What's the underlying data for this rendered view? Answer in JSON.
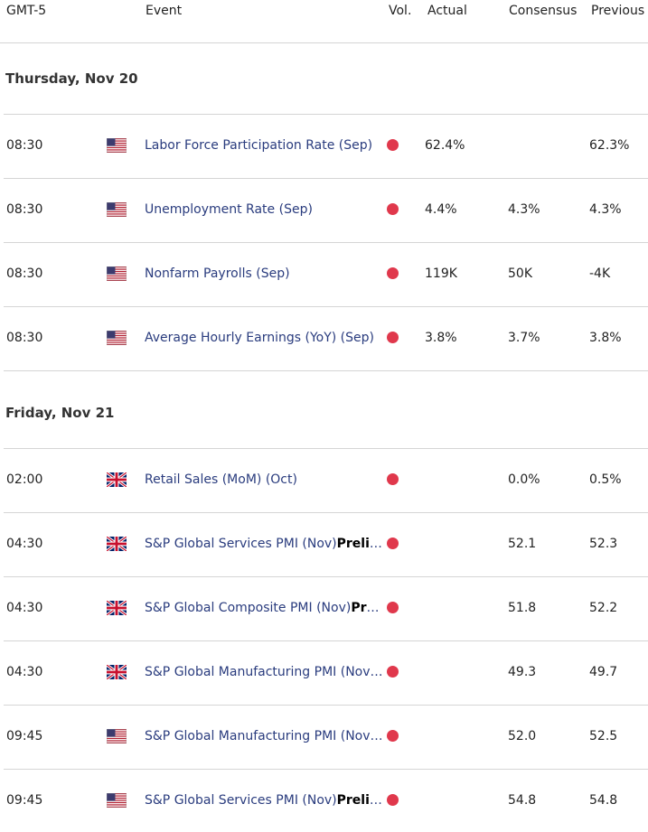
{
  "columns": {
    "timezone": "GMT-5",
    "event": "Event",
    "volatility": "Vol.",
    "actual": "Actual",
    "consensus": "Consensus",
    "previous": "Previous"
  },
  "colors": {
    "volatility_high": "#e0384c",
    "event_text": "#2a3c7e"
  },
  "days": [
    {
      "date": "Thursday, Nov 20",
      "events": [
        {
          "time": "08:30",
          "flag": "us-flag-icon",
          "name": "Labor Force Participation Rate (Sep)",
          "name_bold": "",
          "actual": "62.4%",
          "consensus": "",
          "previous": "62.3%"
        },
        {
          "time": "08:30",
          "flag": "us-flag-icon",
          "name": "Unemployment Rate (Sep)",
          "name_bold": "",
          "actual": "4.4%",
          "consensus": "4.3%",
          "previous": "4.3%"
        },
        {
          "time": "08:30",
          "flag": "us-flag-icon",
          "name": "Nonfarm Payrolls (Sep)",
          "name_bold": "",
          "actual": "119K",
          "consensus": "50K",
          "previous": "-4K"
        },
        {
          "time": "08:30",
          "flag": "us-flag-icon",
          "name": "Average Hourly Earnings (YoY) (Sep)",
          "name_bold": "",
          "actual": "3.8%",
          "consensus": "3.7%",
          "previous": "3.8%"
        }
      ]
    },
    {
      "date": "Friday, Nov 21",
      "events": [
        {
          "time": "02:00",
          "flag": "uk-flag-icon",
          "name": "Retail Sales (MoM) (Oct)",
          "name_bold": "",
          "actual": "",
          "consensus": "0.0%",
          "previous": "0.5%"
        },
        {
          "time": "04:30",
          "flag": "uk-flag-icon",
          "name": "S&P Global Services PMI (Nov)",
          "name_bold": "Prelimi…",
          "actual": "",
          "consensus": "52.1",
          "previous": "52.3"
        },
        {
          "time": "04:30",
          "flag": "uk-flag-icon",
          "name": "S&P Global Composite PMI (Nov)",
          "name_bold": "Preli…",
          "actual": "",
          "consensus": "51.8",
          "previous": "52.2"
        },
        {
          "time": "04:30",
          "flag": "uk-flag-icon",
          "name": "S&P Global Manufacturing PMI (Nov)…",
          "name_bold": "",
          "actual": "",
          "consensus": "49.3",
          "previous": "49.7"
        },
        {
          "time": "09:45",
          "flag": "us-flag-icon",
          "name": "S&P Global Manufacturing PMI (Nov)…",
          "name_bold": "",
          "actual": "",
          "consensus": "52.0",
          "previous": "52.5"
        },
        {
          "time": "09:45",
          "flag": "us-flag-icon",
          "name": "S&P Global Services PMI (Nov)",
          "name_bold": "Prelimi…",
          "actual": "",
          "consensus": "54.8",
          "previous": "54.8"
        }
      ]
    }
  ]
}
